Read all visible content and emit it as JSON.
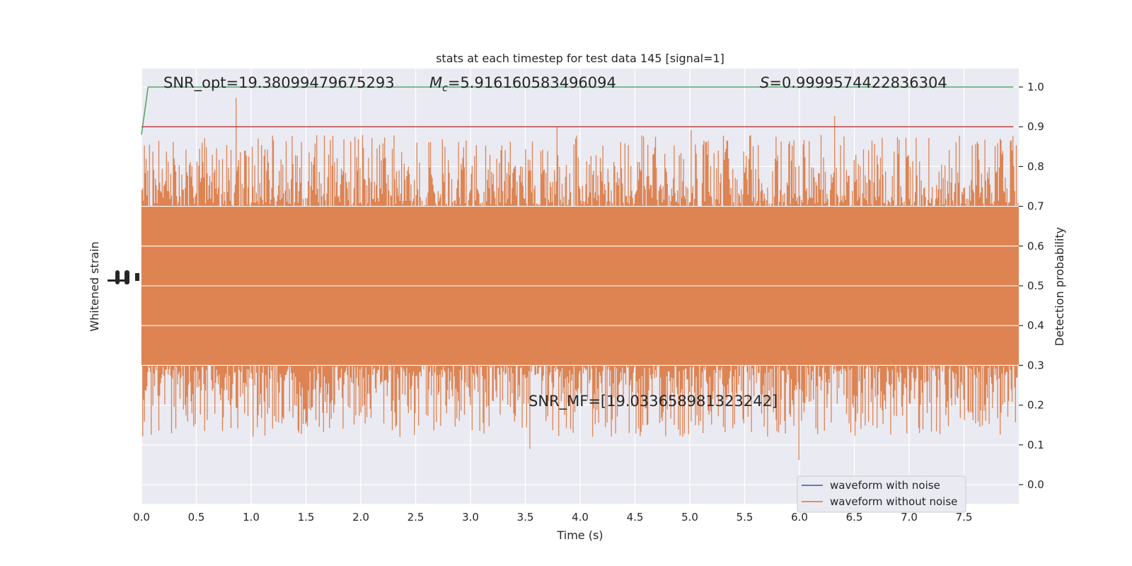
{
  "chart_data": {
    "type": "line",
    "title": "stats at each timestep for test data 145 [signal=1]",
    "xlabel": "Time (s)",
    "ylabel_left": "Whitened strain",
    "ylabel_right": "Detection probability",
    "xlim": [
      0,
      8.0
    ],
    "right_ylim": [
      -0.05,
      1.05
    ],
    "x_ticks": [
      0.0,
      0.5,
      1.0,
      1.5,
      2.0,
      2.5,
      3.0,
      3.5,
      4.0,
      4.5,
      5.0,
      5.5,
      6.0,
      6.5,
      7.0,
      7.5
    ],
    "x_tick_labels": [
      "0.0",
      "0.5",
      "1.0",
      "1.5",
      "2.0",
      "2.5",
      "3.0",
      "3.5",
      "4.0",
      "4.5",
      "5.0",
      "5.5",
      "6.0",
      "6.5",
      "7.0",
      "7.5"
    ],
    "right_y_ticks": [
      0.0,
      0.1,
      0.2,
      0.3,
      0.4,
      0.5,
      0.6,
      0.7,
      0.8,
      0.9,
      1.0
    ],
    "right_y_tick_labels": [
      "0.0",
      "0.1",
      "0.2",
      "0.3",
      "0.4",
      "0.5",
      "0.6",
      "0.7",
      "0.8",
      "0.9",
      "1.0"
    ],
    "grid": true,
    "legend_position": "lower-right",
    "series": [
      {
        "name": "waveform with noise",
        "color": "#4c72b0"
      },
      {
        "name": "waveform without noise",
        "color": "#dd8452",
        "band": {
          "core_low": 0.3,
          "core_high": 0.7,
          "min": 0.05,
          "max": 0.98
        }
      },
      {
        "color": "#55a868",
        "axis": "right",
        "x": [
          0.0,
          0.06,
          7.95
        ],
        "y": [
          0.88,
          1.0,
          1.0
        ]
      },
      {
        "color": "#c44e52",
        "axis": "right",
        "x": [
          0.0,
          7.95
        ],
        "y": [
          0.9,
          0.9
        ]
      }
    ],
    "annotations": {
      "snr_opt": "SNR_opt=19.38099479675293",
      "mc_prefix": "M",
      "mc_sub": "c",
      "mc_value": "=5.916160583496094",
      "s_prefix": "S",
      "s_value": "=0.9999574422836304",
      "snr_mf": "SNR_MF=[19.033658981323242]"
    }
  }
}
